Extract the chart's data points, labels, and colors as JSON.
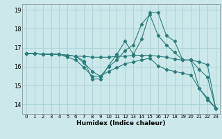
{
  "title": "",
  "xlabel": "Humidex (Indice chaleur)",
  "bg_color": "#cce8ea",
  "grid_color": "#aad4d6",
  "line_color": "#2a7d7d",
  "xlim": [
    -0.5,
    23.5
  ],
  "ylim": [
    13.5,
    19.3
  ],
  "xticks": [
    0,
    1,
    2,
    3,
    4,
    5,
    6,
    7,
    8,
    9,
    10,
    11,
    12,
    13,
    14,
    15,
    16,
    17,
    18,
    19,
    20,
    21,
    22,
    23
  ],
  "yticks": [
    14,
    15,
    16,
    17,
    18,
    19
  ],
  "series": [
    {
      "x": [
        0,
        1,
        2,
        3,
        4,
        5,
        6,
        7,
        8,
        9,
        10,
        11,
        12,
        13,
        14,
        15,
        16,
        17,
        18,
        19,
        20,
        21,
        22,
        23
      ],
      "y": [
        16.7,
        16.7,
        16.65,
        16.65,
        16.65,
        16.6,
        16.55,
        16.3,
        15.35,
        15.35,
        16.05,
        16.65,
        17.35,
        16.65,
        17.45,
        18.85,
        18.85,
        17.65,
        17.35,
        16.35,
        16.35,
        14.85,
        14.35,
        13.8
      ]
    },
    {
      "x": [
        0,
        1,
        2,
        3,
        4,
        5,
        6,
        7,
        8,
        9,
        10,
        11,
        12,
        13,
        14,
        15,
        16,
        17,
        18,
        19,
        20,
        21,
        22,
        23
      ],
      "y": [
        16.7,
        16.7,
        16.65,
        16.65,
        16.65,
        16.6,
        16.55,
        16.2,
        15.75,
        15.5,
        16.0,
        16.35,
        16.85,
        17.15,
        18.25,
        18.75,
        17.65,
        17.15,
        16.75,
        16.35,
        16.35,
        15.85,
        15.45,
        13.8
      ]
    },
    {
      "x": [
        0,
        1,
        2,
        3,
        4,
        5,
        6,
        7,
        8,
        9,
        10,
        11,
        12,
        13,
        14,
        15,
        16,
        17,
        18,
        19,
        20,
        21,
        22,
        23
      ],
      "y": [
        16.7,
        16.7,
        16.65,
        16.65,
        16.65,
        16.6,
        16.55,
        16.55,
        16.5,
        16.5,
        16.5,
        16.55,
        16.55,
        16.6,
        16.6,
        16.6,
        16.55,
        16.5,
        16.4,
        16.35,
        16.35,
        16.25,
        16.1,
        13.8
      ]
    },
    {
      "x": [
        0,
        1,
        2,
        3,
        4,
        5,
        6,
        7,
        8,
        9,
        10,
        11,
        12,
        13,
        14,
        15,
        16,
        17,
        18,
        19,
        20,
        21,
        22,
        23
      ],
      "y": [
        16.7,
        16.7,
        16.65,
        16.65,
        16.65,
        16.5,
        16.35,
        15.95,
        15.5,
        15.5,
        15.75,
        15.95,
        16.15,
        16.25,
        16.35,
        16.45,
        16.05,
        15.85,
        15.75,
        15.65,
        15.55,
        14.85,
        14.25,
        13.8
      ]
    }
  ]
}
